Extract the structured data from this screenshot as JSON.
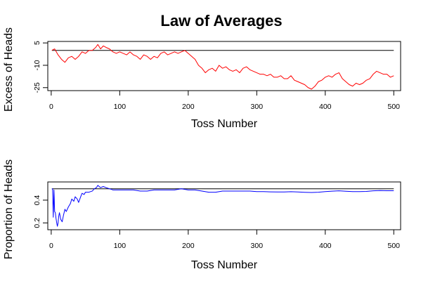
{
  "figure": {
    "title": "Law of Averages"
  },
  "chart_data": [
    {
      "type": "line",
      "ylabel": "Excess of Heads",
      "xlabel": "Toss Number",
      "xlim": [
        -5,
        510
      ],
      "ylim": [
        -27,
        6
      ],
      "x_ticks": [
        0,
        100,
        200,
        300,
        400,
        500
      ],
      "y_ticks": [
        5,
        -10,
        -25
      ],
      "reference_line": 0,
      "line_color": "#ff0000",
      "series": [
        {
          "color": "#ff0000",
          "points": [
            [
              1,
              0
            ],
            [
              5,
              1
            ],
            [
              10,
              -3
            ],
            [
              15,
              -6
            ],
            [
              20,
              -8
            ],
            [
              25,
              -5
            ],
            [
              30,
              -4
            ],
            [
              35,
              -6
            ],
            [
              40,
              -4
            ],
            [
              45,
              -1
            ],
            [
              50,
              -2
            ],
            [
              55,
              0
            ],
            [
              60,
              0
            ],
            [
              65,
              2
            ],
            [
              68,
              4
            ],
            [
              72,
              1
            ],
            [
              76,
              3
            ],
            [
              80,
              2
            ],
            [
              85,
              1
            ],
            [
              90,
              -1
            ],
            [
              95,
              -2
            ],
            [
              100,
              -1
            ],
            [
              105,
              -2
            ],
            [
              110,
              -3
            ],
            [
              115,
              -1
            ],
            [
              120,
              -3
            ],
            [
              125,
              -4
            ],
            [
              130,
              -6
            ],
            [
              135,
              -3
            ],
            [
              140,
              -4
            ],
            [
              145,
              -6
            ],
            [
              150,
              -4
            ],
            [
              155,
              -5
            ],
            [
              160,
              -2
            ],
            [
              165,
              -1
            ],
            [
              170,
              -3
            ],
            [
              175,
              -2
            ],
            [
              180,
              -1
            ],
            [
              185,
              -2
            ],
            [
              190,
              -1
            ],
            [
              195,
              0
            ],
            [
              200,
              -2
            ],
            [
              205,
              -4
            ],
            [
              210,
              -6
            ],
            [
              215,
              -10
            ],
            [
              220,
              -12
            ],
            [
              225,
              -15
            ],
            [
              230,
              -13
            ],
            [
              235,
              -12
            ],
            [
              240,
              -14
            ],
            [
              245,
              -10
            ],
            [
              250,
              -12
            ],
            [
              255,
              -11
            ],
            [
              260,
              -13
            ],
            [
              265,
              -14
            ],
            [
              270,
              -13
            ],
            [
              275,
              -15
            ],
            [
              280,
              -12
            ],
            [
              285,
              -11
            ],
            [
              290,
              -13
            ],
            [
              295,
              -14
            ],
            [
              300,
              -15
            ],
            [
              305,
              -16
            ],
            [
              310,
              -16
            ],
            [
              315,
              -17
            ],
            [
              320,
              -16
            ],
            [
              325,
              -18
            ],
            [
              330,
              -18
            ],
            [
              335,
              -17
            ],
            [
              340,
              -19
            ],
            [
              345,
              -19
            ],
            [
              350,
              -17
            ],
            [
              355,
              -20
            ],
            [
              360,
              -21
            ],
            [
              365,
              -22
            ],
            [
              370,
              -23
            ],
            [
              375,
              -25
            ],
            [
              380,
              -26
            ],
            [
              385,
              -24
            ],
            [
              390,
              -21
            ],
            [
              395,
              -20
            ],
            [
              400,
              -18
            ],
            [
              405,
              -17
            ],
            [
              410,
              -18
            ],
            [
              415,
              -16
            ],
            [
              420,
              -15
            ],
            [
              425,
              -19
            ],
            [
              430,
              -21
            ],
            [
              435,
              -23
            ],
            [
              440,
              -24
            ],
            [
              445,
              -22
            ],
            [
              450,
              -23
            ],
            [
              455,
              -22
            ],
            [
              460,
              -20
            ],
            [
              465,
              -19
            ],
            [
              470,
              -16
            ],
            [
              475,
              -14
            ],
            [
              480,
              -15
            ],
            [
              485,
              -16
            ],
            [
              490,
              -16
            ],
            [
              495,
              -18
            ],
            [
              500,
              -17
            ]
          ]
        }
      ]
    },
    {
      "type": "line",
      "ylabel": "Proportion of Heads",
      "xlabel": "Toss Number",
      "xlim": [
        -5,
        510
      ],
      "ylim": [
        0.14,
        0.56
      ],
      "x_ticks": [
        0,
        100,
        200,
        300,
        400,
        500
      ],
      "y_ticks": [
        0.2,
        0.4
      ],
      "reference_line": 0.5,
      "line_color": "#0000ff",
      "series": [
        {
          "color": "#0000ff",
          "points": [
            [
              1,
              0.5
            ],
            [
              2,
              0.5
            ],
            [
              3,
              0.25
            ],
            [
              4,
              0.49
            ],
            [
              5,
              0.3
            ],
            [
              6,
              0.29
            ],
            [
              7,
              0.24
            ],
            [
              8,
              0.2
            ],
            [
              9,
              0.17
            ],
            [
              10,
              0.2
            ],
            [
              11,
              0.26
            ],
            [
              12,
              0.29
            ],
            [
              14,
              0.23
            ],
            [
              16,
              0.21
            ],
            [
              18,
              0.27
            ],
            [
              20,
              0.32
            ],
            [
              22,
              0.3
            ],
            [
              25,
              0.34
            ],
            [
              28,
              0.37
            ],
            [
              30,
              0.41
            ],
            [
              33,
              0.39
            ],
            [
              35,
              0.43
            ],
            [
              38,
              0.41
            ],
            [
              40,
              0.38
            ],
            [
              43,
              0.43
            ],
            [
              45,
              0.46
            ],
            [
              48,
              0.45
            ],
            [
              50,
              0.47
            ],
            [
              55,
              0.47
            ],
            [
              60,
              0.48
            ],
            [
              63,
              0.5
            ],
            [
              66,
              0.51
            ],
            [
              68,
              0.53
            ],
            [
              72,
              0.51
            ],
            [
              76,
              0.52
            ],
            [
              80,
              0.51
            ],
            [
              85,
              0.5
            ],
            [
              90,
              0.49
            ],
            [
              95,
              0.49
            ],
            [
              100,
              0.49
            ],
            [
              110,
              0.49
            ],
            [
              120,
              0.49
            ],
            [
              130,
              0.48
            ],
            [
              140,
              0.48
            ],
            [
              150,
              0.49
            ],
            [
              160,
              0.49
            ],
            [
              170,
              0.49
            ],
            [
              180,
              0.49
            ],
            [
              190,
              0.5
            ],
            [
              200,
              0.49
            ],
            [
              210,
              0.49
            ],
            [
              220,
              0.48
            ],
            [
              230,
              0.47
            ],
            [
              240,
              0.47
            ],
            [
              250,
              0.48
            ],
            [
              260,
              0.48
            ],
            [
              270,
              0.48
            ],
            [
              280,
              0.48
            ],
            [
              290,
              0.48
            ],
            [
              300,
              0.475
            ],
            [
              310,
              0.475
            ],
            [
              320,
              0.473
            ],
            [
              330,
              0.472
            ],
            [
              340,
              0.472
            ],
            [
              350,
              0.474
            ],
            [
              360,
              0.472
            ],
            [
              370,
              0.469
            ],
            [
              380,
              0.467
            ],
            [
              390,
              0.47
            ],
            [
              400,
              0.475
            ],
            [
              410,
              0.479
            ],
            [
              420,
              0.482
            ],
            [
              430,
              0.478
            ],
            [
              440,
              0.475
            ],
            [
              450,
              0.475
            ],
            [
              460,
              0.477
            ],
            [
              470,
              0.482
            ],
            [
              480,
              0.484
            ],
            [
              490,
              0.483
            ],
            [
              500,
              0.483
            ]
          ]
        }
      ]
    }
  ]
}
